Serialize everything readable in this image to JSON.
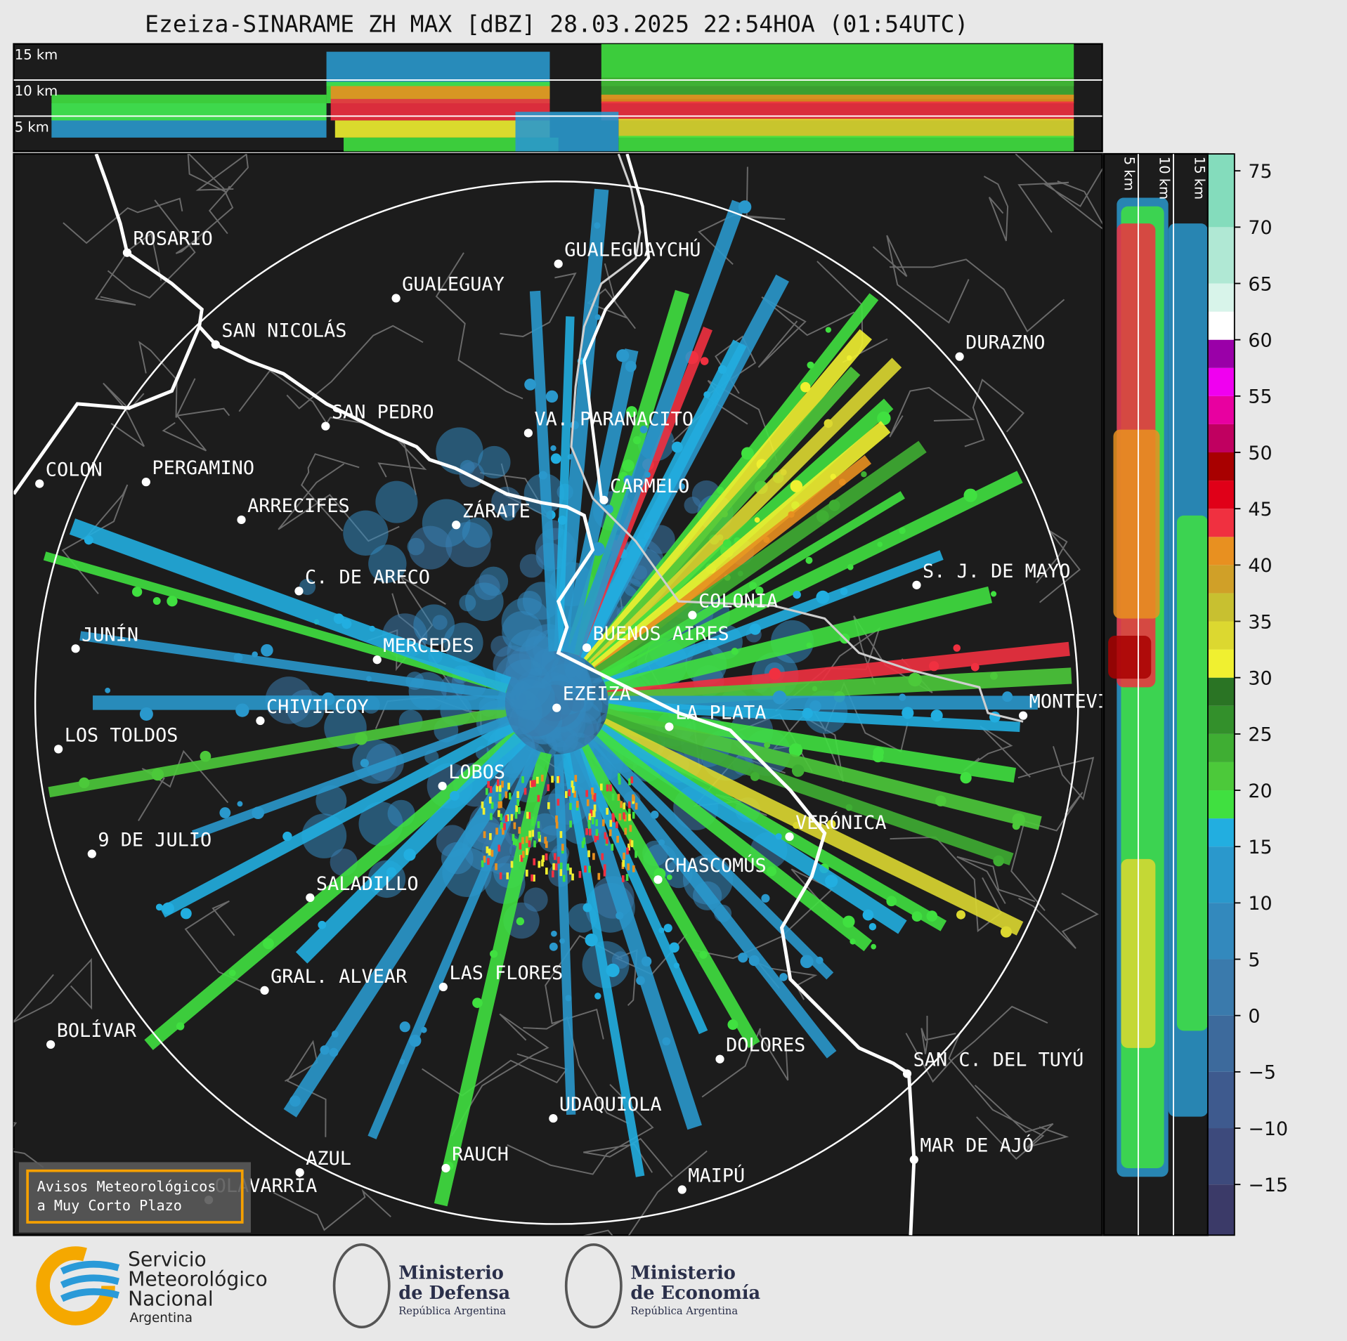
{
  "title": "Ezeiza-SINARAME ZH MAX [dBZ] 28.03.2025 22:54HOA (01:54UTC)",
  "top_panel": {
    "height_labels": [
      "15 km",
      "10 km",
      "5 km"
    ]
  },
  "side_panel": {
    "height_labels": [
      "5 km",
      "10 km",
      "15 km"
    ]
  },
  "map": {
    "places": [
      "ROSARIO",
      "GUALEGUAYCHÚ",
      "GUALEGUAY",
      "SAN NICOLÁS",
      "DURAZNO",
      "SAN PEDRO",
      "VA. PARANACITO",
      "COLON",
      "PERGAMINO",
      "CARMELO",
      "ARRECIFES",
      "ZÁRATE",
      "S. J. DE MAYO",
      "C. DE ARECO",
      "COLONIA",
      "JUNÍN",
      "BUENOS AIRES",
      "MERCEDES",
      "EZEIZA",
      "MONTEVIDEO",
      "CHIVILCOY",
      "LA PLATA",
      "LOS TOLDOS",
      "LOBOS",
      "VERÓNICA",
      "9 DE JULIO",
      "CHASCOMÚS",
      "SALADILLO",
      "GRAL. ALVEAR",
      "LAS FLORES",
      "BOLÍVAR",
      "DOLORES",
      "SAN C. DEL TUYÚ",
      "UDAQUIOLA",
      "MAR DE AJÓ",
      "RAUCH",
      "AZUL",
      "OLAVARRÍA",
      "MAIPÚ"
    ],
    "notice": [
      "Avisos Meteorológicos",
      "a Muy Corto Plazo"
    ]
  },
  "colorbar": {
    "ylim": [
      -19.5,
      76.5
    ],
    "levels": [
      -19.5,
      -15,
      -10,
      -5,
      0,
      5,
      10,
      15,
      17.5,
      20,
      22.5,
      25,
      27.5,
      30,
      32.5,
      35,
      37.5,
      40,
      42.5,
      45,
      47.5,
      50,
      52.5,
      55,
      57.5,
      60,
      62.5,
      65,
      70,
      76.5
    ],
    "colors": [
      "#3b3a68",
      "#3d4a7c",
      "#3e5a8e",
      "#3d6a9c",
      "#3a7aac",
      "#3389bd",
      "#2a98cc",
      "#22aee0",
      "#40e040",
      "#4cc93a",
      "#3fae33",
      "#33902b",
      "#2a7424",
      "#f0f030",
      "#dcd830",
      "#c8c030",
      "#d0a028",
      "#e89020",
      "#f03040",
      "#e00018",
      "#a80000",
      "#c00060",
      "#e800a0",
      "#f000f0",
      "#9a00a8",
      "#ffffff",
      "#d8f4ea",
      "#b0e8d4",
      "#84dcbc"
    ],
    "yticks": [
      75,
      70,
      65,
      60,
      55,
      50,
      45,
      40,
      35,
      30,
      25,
      20,
      15,
      10,
      5,
      0,
      {
        "value": -5,
        "label": "−5"
      },
      {
        "value": -10,
        "label": "−10"
      },
      {
        "value": -15,
        "label": "−15"
      }
    ]
  },
  "footer": {
    "smn": [
      "Servicio",
      "Meteorológico",
      "Nacional",
      "Argentina"
    ],
    "defensa": [
      "Ministerio",
      "de Defensa",
      "República Argentina"
    ],
    "economia": [
      "Ministerio",
      "de Economía",
      "República Argentina"
    ]
  }
}
